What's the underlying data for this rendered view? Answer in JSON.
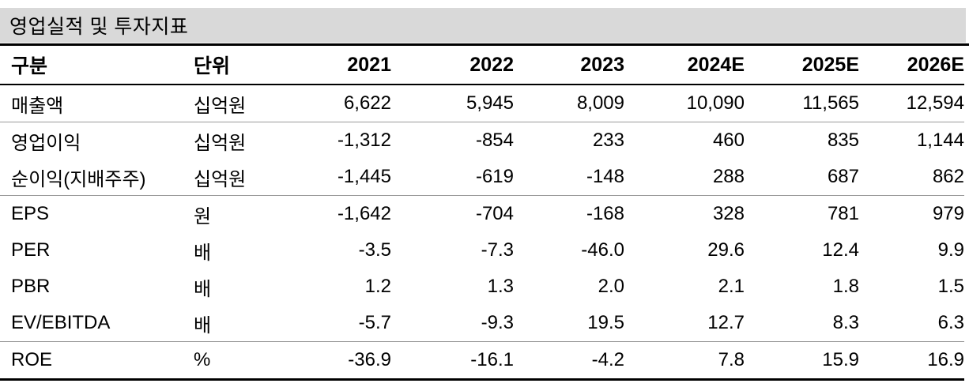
{
  "title": "영업실적 및 투자지표",
  "colors": {
    "title_bar_bg": "#d9d9d9",
    "heavy_rule": "#000000",
    "group_divider": "#999999",
    "text": "#000000"
  },
  "table": {
    "columns": [
      "구분",
      "단위",
      "2021",
      "2022",
      "2023",
      "2024E",
      "2025E",
      "2026E"
    ],
    "rows": [
      {
        "label": "매출액",
        "unit": "십억원",
        "values": [
          "6,622",
          "5,945",
          "8,009",
          "10,090",
          "11,565",
          "12,594"
        ],
        "divider_after": true
      },
      {
        "label": "영업이익",
        "unit": "십억원",
        "values": [
          "-1,312",
          "-854",
          "233",
          "460",
          "835",
          "1,144"
        ],
        "divider_after": false
      },
      {
        "label": "순이익(지배주주)",
        "unit": "십억원",
        "values": [
          "-1,445",
          "-619",
          "-148",
          "288",
          "687",
          "862"
        ],
        "divider_after": true
      },
      {
        "label": "EPS",
        "unit": "원",
        "values": [
          "-1,642",
          "-704",
          "-168",
          "328",
          "781",
          "979"
        ],
        "divider_after": false
      },
      {
        "label": "PER",
        "unit": "배",
        "values": [
          "-3.5",
          "-7.3",
          "-46.0",
          "29.6",
          "12.4",
          "9.9"
        ],
        "divider_after": false
      },
      {
        "label": "PBR",
        "unit": "배",
        "values": [
          "1.2",
          "1.3",
          "2.0",
          "2.1",
          "1.8",
          "1.5"
        ],
        "divider_after": false
      },
      {
        "label": "EV/EBITDA",
        "unit": "배",
        "values": [
          "-5.7",
          "-9.3",
          "19.5",
          "12.7",
          "8.3",
          "6.3"
        ],
        "divider_after": true
      },
      {
        "label": "ROE",
        "unit": "%",
        "values": [
          "-36.9",
          "-16.1",
          "-4.2",
          "7.8",
          "15.9",
          "16.9"
        ],
        "divider_after": false
      }
    ]
  }
}
